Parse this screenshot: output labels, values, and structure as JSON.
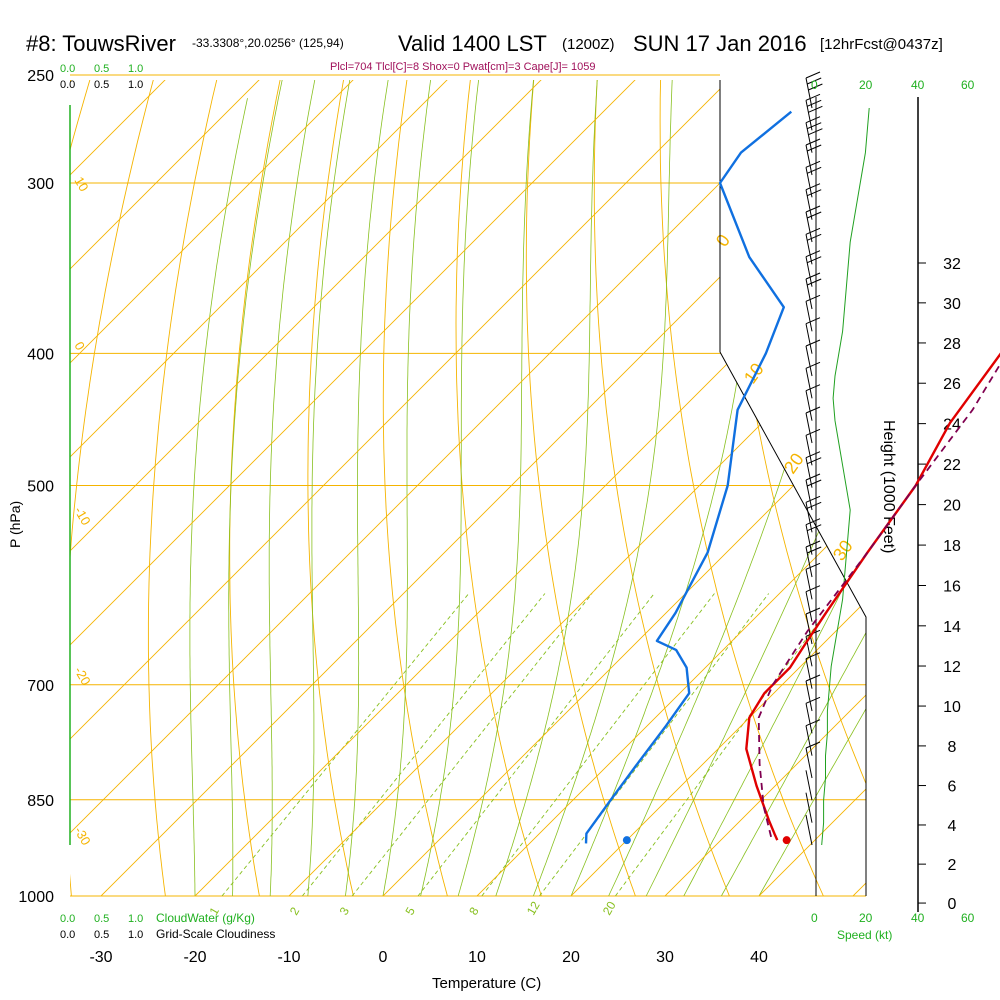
{
  "header": {
    "station": "#8: TouwsRiver",
    "location": "-33.3308°,20.0256° (125,94)",
    "valid": "Valid 1400 LST",
    "valid_z": "(1200Z)",
    "date": "SUN 17 Jan 2016",
    "forecast": "[12hrFcst@0437z]",
    "params": "Plcl=704 Tlcl[C]=8 Shox=0 Pwat[cm]=3 Cape[J]= 1059"
  },
  "colors": {
    "isobar": "#f5b400",
    "dry_adiabat": "#f5b400",
    "moist_adiabat": "#88c020",
    "mixing_ratio": "#88c020",
    "temperature": "#e00000",
    "dewpoint": "#1070e0",
    "parcel": "#800050",
    "green_label": "#20a020",
    "wind": "#000000"
  },
  "chart_data": {
    "type": "line",
    "title": "",
    "xlabel": "Temperature (C)",
    "ylabel": "P (hPa)",
    "y2label": "Height (1000 Feet)",
    "xlim": [
      -35,
      47
    ],
    "x_ticks": [
      -30,
      -20,
      -10,
      0,
      10,
      20,
      30,
      40
    ],
    "pressure_ticks": [
      250,
      300,
      400,
      500,
      700,
      850,
      1000
    ],
    "pressure_range": [
      1000,
      250
    ],
    "height_ticks": [
      0,
      2,
      4,
      6,
      8,
      10,
      12,
      14,
      16,
      18,
      20,
      22,
      24,
      26,
      28,
      30,
      32
    ],
    "dry_adiabat_labels": [
      "-30",
      "-20",
      "-10",
      "0",
      "10",
      "20",
      "30"
    ],
    "mixing_ratio_labels": [
      "1",
      "2",
      "3",
      "5",
      "8",
      "12",
      "20"
    ],
    "isotherm_labels": [
      "10",
      "0",
      "-10",
      "-20",
      "-30"
    ],
    "cloudwater_ticks": [
      "0.0",
      "0.5",
      "1.0"
    ],
    "cloudiness_ticks": [
      "0.0",
      "0.5",
      "1.0"
    ],
    "cloudwater_label": "CloudWater (g/Kg)",
    "cloudiness_label": "Grid-Scale Cloudiness",
    "speed_ticks": [
      "0",
      "20",
      "40",
      "60"
    ],
    "speed_label": "Speed (kt)",
    "series": [
      {
        "name": "Temperature",
        "points": [
          [
            36,
            910
          ],
          [
            35,
            900
          ],
          [
            33,
            880
          ],
          [
            28,
            830
          ],
          [
            23,
            780
          ],
          [
            20,
            740
          ],
          [
            19,
            710
          ],
          [
            19,
            680
          ],
          [
            18,
            650
          ],
          [
            17,
            620
          ],
          [
            15,
            560
          ],
          [
            13,
            500
          ],
          [
            10,
            450
          ],
          [
            8,
            400
          ],
          [
            6,
            350
          ],
          [
            3,
            300
          ],
          [
            0,
            266
          ]
        ]
      },
      {
        "name": "Dewpoint",
        "points": [
          [
            16,
            915
          ],
          [
            15,
            900
          ],
          [
            14,
            850
          ],
          [
            13,
            800
          ],
          [
            12,
            750
          ],
          [
            11,
            710
          ],
          [
            8,
            680
          ],
          [
            5,
            660
          ],
          [
            2,
            650
          ],
          [
            1,
            620
          ],
          [
            -2,
            560
          ],
          [
            -7,
            500
          ],
          [
            -14,
            440
          ],
          [
            -17,
            400
          ],
          [
            -20,
            370
          ],
          [
            -29,
            340
          ],
          [
            -40,
            300
          ],
          [
            -41,
            285
          ],
          [
            -40,
            266
          ]
        ]
      },
      {
        "name": "Parcel",
        "points": [
          [
            35,
            905
          ],
          [
            31,
            860
          ],
          [
            26,
            800
          ],
          [
            21,
            740
          ],
          [
            20,
            720
          ],
          [
            19,
            700
          ],
          [
            17,
            640
          ],
          [
            15,
            560
          ],
          [
            13,
            500
          ],
          [
            11,
            440
          ],
          [
            8,
            390
          ],
          [
            6,
            350
          ],
          [
            5,
            310
          ],
          [
            3,
            280
          ],
          [
            2,
            266
          ]
        ]
      }
    ],
    "surface_temperature": 37,
    "surface_dewpoint": 20,
    "surface_pressure": 910,
    "wind_profile_kt": [
      3,
      4,
      4,
      5,
      5,
      6,
      6,
      7,
      8,
      10,
      12,
      14,
      15,
      16,
      17,
      18,
      16,
      14,
      12,
      10,
      9,
      10,
      12,
      14,
      15,
      16,
      17,
      18,
      20,
      22,
      24,
      26,
      27,
      28
    ]
  }
}
